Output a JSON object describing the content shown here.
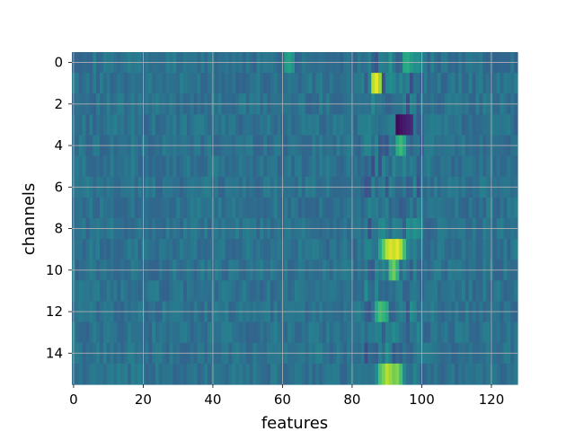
{
  "chart_data": {
    "type": "heatmap",
    "title": "",
    "xlabel": "features",
    "ylabel": "channels",
    "n_features": 128,
    "n_channels": 16,
    "xlim": [
      -0.5,
      127.5
    ],
    "ylim": [
      15.5,
      -0.5
    ],
    "xticks": [
      0,
      20,
      40,
      60,
      80,
      100,
      120
    ],
    "xtick_labels": [
      "0",
      "20",
      "40",
      "60",
      "80",
      "100",
      "120"
    ],
    "yticks": [
      0,
      2,
      4,
      6,
      8,
      10,
      12,
      14
    ],
    "ytick_labels": [
      "0",
      "2",
      "4",
      "6",
      "8",
      "10",
      "12",
      "14"
    ],
    "grid": true,
    "colormap": "viridis",
    "background_value": 0.38,
    "hotspots": [
      {
        "channel": 1,
        "features": [
          86,
          87,
          88
        ],
        "values": [
          0.9,
          0.97,
          0.85
        ]
      },
      {
        "channel": 3,
        "features": [
          93,
          94,
          95,
          96,
          97
        ],
        "values": [
          0.02,
          0.05,
          0.08,
          0.1,
          0.12
        ]
      },
      {
        "channel": 9,
        "features": [
          88,
          89,
          90,
          91,
          92,
          93,
          94,
          95
        ],
        "values": [
          0.6,
          0.75,
          0.9,
          0.95,
          0.92,
          0.97,
          0.88,
          0.7
        ]
      },
      {
        "channel": 10,
        "features": [
          91,
          92,
          93
        ],
        "values": [
          0.7,
          0.78,
          0.65
        ]
      },
      {
        "channel": 12,
        "features": [
          87,
          88,
          89,
          90
        ],
        "values": [
          0.62,
          0.7,
          0.66,
          0.6
        ]
      },
      {
        "channel": 15,
        "features": [
          88,
          89,
          90,
          91,
          92,
          93,
          94
        ],
        "values": [
          0.72,
          0.8,
          0.9,
          0.85,
          0.78,
          0.82,
          0.7
        ]
      },
      {
        "channel": 4,
        "features": [
          93,
          94,
          95
        ],
        "values": [
          0.62,
          0.68,
          0.6
        ]
      },
      {
        "channel": 0,
        "features": [
          61,
          62,
          63,
          95,
          96,
          97,
          98
        ],
        "values": [
          0.55,
          0.58,
          0.52,
          0.6,
          0.62,
          0.55,
          0.5
        ]
      }
    ]
  }
}
